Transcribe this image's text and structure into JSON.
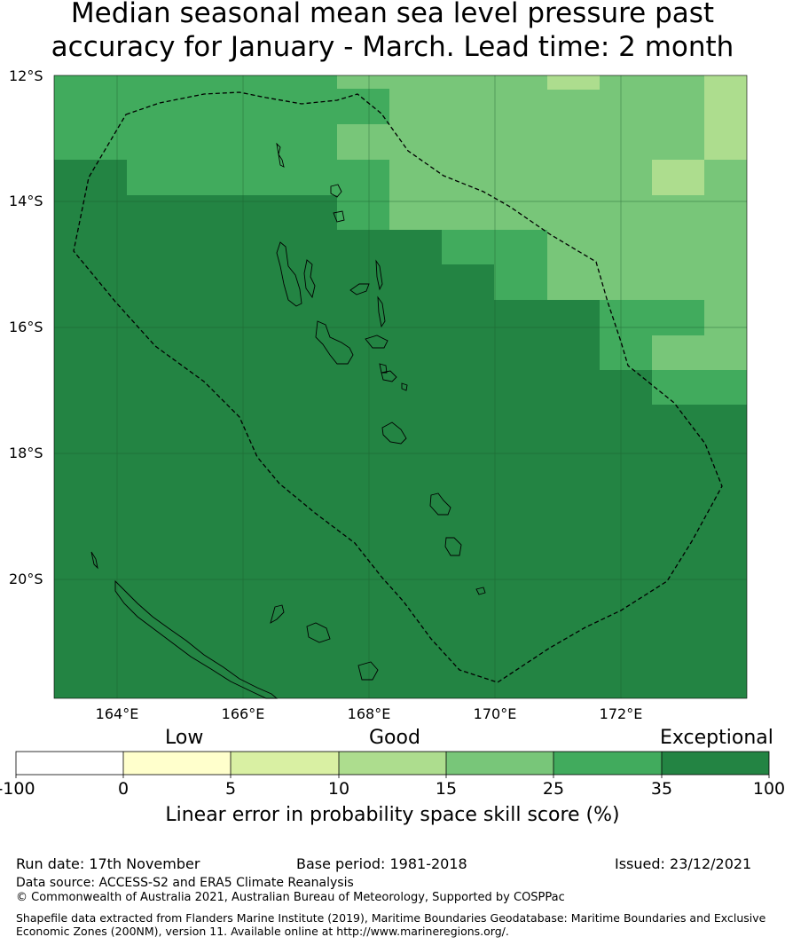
{
  "title": {
    "line1": "Median seasonal mean sea level pressure past",
    "line2": "accuracy for January - March. Lead time: 2 month"
  },
  "map": {
    "lat_labels": [
      "12°S",
      "14°S",
      "16°S",
      "18°S",
      "20°S"
    ],
    "lon_labels": [
      "164°E",
      "166°E",
      "168°E",
      "170°E",
      "172°E"
    ],
    "lon_range": [
      163.0,
      174.0
    ],
    "lat_range": [
      -21.9,
      -12.0
    ],
    "colors": {
      "c15_25": "#78c679",
      "c25_35": "#41ab5d",
      "c35_100": "#238443",
      "c10_15": "#addd8e"
    }
  },
  "colorbar": {
    "categories": [
      "Low",
      "Good",
      "Exceptional"
    ],
    "ticks": [
      "-100",
      "0",
      "5",
      "10",
      "15",
      "25",
      "35",
      "100"
    ],
    "colors": [
      "#ffffff",
      "#ffffcc",
      "#d9f0a3",
      "#addd8e",
      "#78c679",
      "#41ab5d",
      "#238443"
    ],
    "label": "Linear error in probability space skill score (%)"
  },
  "footer": {
    "run_date": "Run date: 17th November",
    "base_period": "Base period: 1981-2018",
    "issued": "Issued: 23/12/2021",
    "data_source": "Data source: ACCESS-S2 and ERA5 Climate Reanalysis",
    "copyright": "© Commonwealth of Australia 2021, Australian Bureau of Meteorology, Supported by COSPPac",
    "shapefile_note": "Shapefile data extracted from Flanders Marine Institute (2019), Maritime Boundaries Geodatabase: Maritime Boundaries and Exclusive Economic Zones (200NM), version 11. Available online at http://www.marineregions.org/."
  }
}
